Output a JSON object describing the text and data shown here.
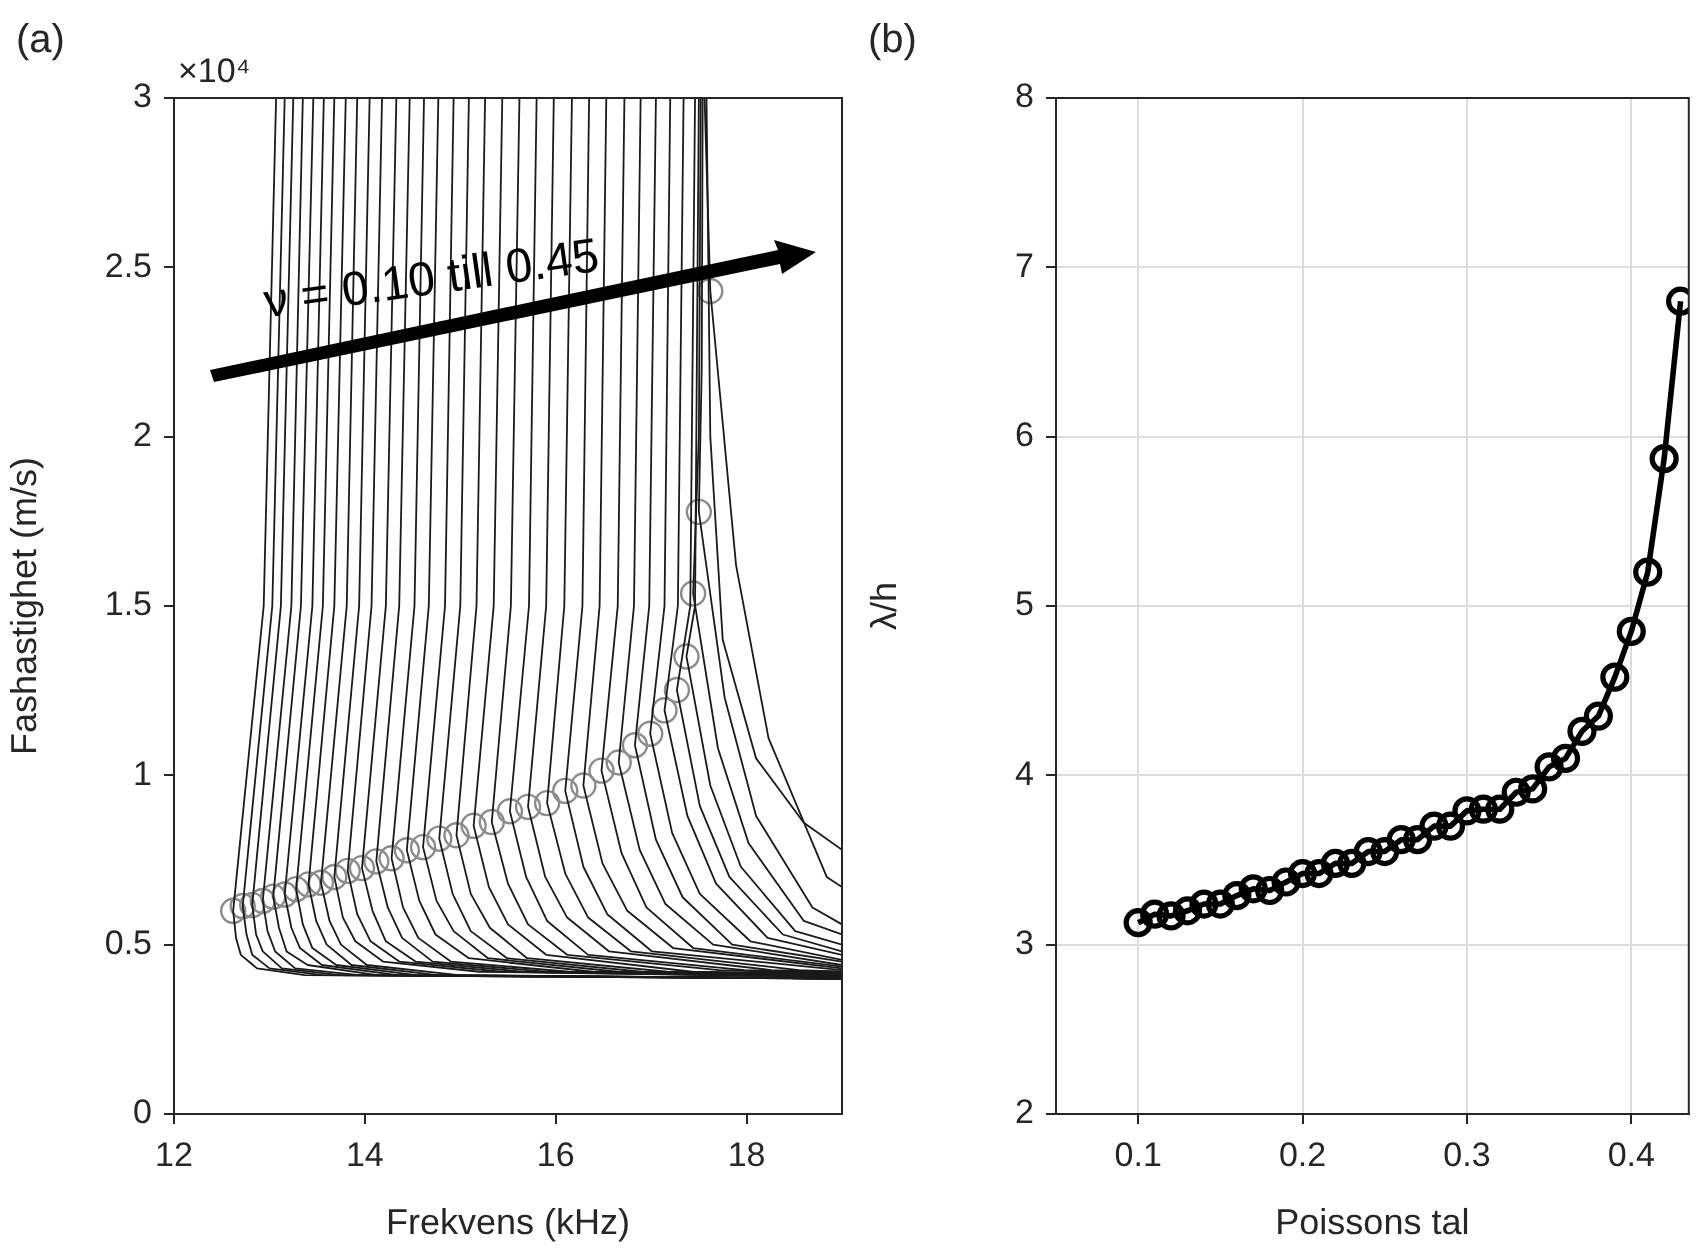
{
  "chart_data": [
    {
      "type": "line",
      "title": "(a)",
      "xlabel": "Frekvens (kHz)",
      "ylabel": "Fashastighet (m/s)",
      "xlim": [
        12,
        19
      ],
      "xticks": [
        12,
        14,
        16,
        18
      ],
      "ylim": [
        0,
        3
      ],
      "yticks": [
        0,
        0.5,
        1,
        1.5,
        2,
        2.5,
        3
      ],
      "grid": false,
      "annotations": [
        "×10⁴",
        {
          "text": "ν = 0.10 till 0.45",
          "x": 14.7,
          "y": 2.46
        }
      ],
      "series": [
        {
          "type": "line",
          "color": "#1a1a1a",
          "marker": "none",
          "x": [
            13.07,
            12.94,
            12.62,
            12.65,
            12.7,
            12.87,
            13.37,
            19
          ],
          "values": [
            3,
            1.5,
            0.6,
            0.52,
            0.47,
            0.43,
            0.41,
            0.4
          ]
        },
        {
          "type": "line",
          "color": "#1a1a1a",
          "marker": "none",
          "x": [
            13.16,
            13.03,
            12.72,
            12.76,
            12.82,
            13.0,
            13.56,
            19
          ],
          "values": [
            3,
            1.5,
            0.614,
            0.53,
            0.47,
            0.43,
            0.41,
            0.4
          ]
        },
        {
          "type": "line",
          "color": "#1a1a1a",
          "marker": "none",
          "x": [
            13.25,
            13.12,
            12.82,
            12.86,
            12.93,
            13.13,
            13.74,
            19
          ],
          "values": [
            3,
            1.5,
            0.617,
            0.53,
            0.48,
            0.43,
            0.41,
            0.4
          ]
        },
        {
          "type": "line",
          "color": "#1a1a1a",
          "marker": "none",
          "x": [
            13.35,
            13.23,
            12.93,
            12.98,
            13.06,
            13.27,
            13.94,
            19
          ],
          "values": [
            3,
            1.5,
            0.629,
            0.54,
            0.48,
            0.43,
            0.41,
            0.4
          ]
        },
        {
          "type": "line",
          "color": "#1a1a1a",
          "marker": "none",
          "x": [
            13.46,
            13.33,
            13.04,
            13.1,
            13.18,
            13.4,
            14.13,
            19
          ],
          "values": [
            3,
            1.5,
            0.642,
            0.55,
            0.48,
            0.44,
            0.41,
            0.4
          ]
        },
        {
          "type": "line",
          "color": "#1a1a1a",
          "marker": "none",
          "x": [
            13.57,
            13.45,
            13.16,
            13.23,
            13.32,
            13.55,
            14.34,
            19
          ],
          "values": [
            3,
            1.5,
            0.648,
            0.55,
            0.49,
            0.44,
            0.41,
            0.4
          ]
        },
        {
          "type": "line",
          "color": "#1a1a1a",
          "marker": "none",
          "x": [
            13.68,
            13.56,
            13.28,
            13.35,
            13.45,
            13.7,
            14.54,
            19
          ],
          "values": [
            3,
            1.5,
            0.664,
            0.56,
            0.49,
            0.44,
            0.41,
            0.4
          ]
        },
        {
          "type": "line",
          "color": "#1a1a1a",
          "marker": "none",
          "x": [
            13.8,
            13.68,
            13.41,
            13.49,
            13.6,
            13.86,
            14.76,
            19
          ],
          "values": [
            3,
            1.5,
            0.678,
            0.57,
            0.5,
            0.44,
            0.41,
            0.4
          ]
        },
        {
          "type": "line",
          "color": "#1a1a1a",
          "marker": "none",
          "x": [
            13.92,
            13.81,
            13.54,
            13.63,
            13.75,
            14.02,
            14.98,
            19
          ],
          "values": [
            3,
            1.5,
            0.683,
            0.57,
            0.5,
            0.44,
            0.41,
            0.4
          ]
        },
        {
          "type": "line",
          "color": "#1a1a1a",
          "marker": "none",
          "x": [
            14.05,
            13.94,
            13.68,
            13.77,
            13.9,
            14.19,
            15.2,
            19
          ],
          "values": [
            3,
            1.5,
            0.7,
            0.58,
            0.51,
            0.45,
            0.42,
            0.405
          ]
        },
        {
          "type": "line",
          "color": "#1a1a1a",
          "marker": "none",
          "x": [
            14.18,
            14.07,
            13.82,
            13.92,
            14.06,
            14.36,
            15.43,
            19
          ],
          "values": [
            3,
            1.5,
            0.718,
            0.59,
            0.51,
            0.45,
            0.42,
            0.405
          ]
        },
        {
          "type": "line",
          "color": "#1a1a1a",
          "marker": "none",
          "x": [
            14.33,
            14.22,
            13.97,
            14.08,
            14.22,
            14.53,
            15.66,
            19
          ],
          "values": [
            3,
            1.5,
            0.726,
            0.6,
            0.51,
            0.45,
            0.42,
            0.405
          ]
        },
        {
          "type": "line",
          "color": "#1a1a1a",
          "marker": "none",
          "x": [
            14.47,
            14.36,
            14.12,
            14.24,
            14.39,
            14.71,
            15.9,
            19
          ],
          "values": [
            3,
            1.5,
            0.746,
            0.61,
            0.52,
            0.45,
            0.42,
            0.405
          ]
        },
        {
          "type": "line",
          "color": "#1a1a1a",
          "marker": "none",
          "x": [
            14.62,
            14.52,
            14.28,
            14.4,
            14.56,
            14.9,
            16.14,
            19
          ],
          "values": [
            3,
            1.5,
            0.755,
            0.61,
            0.52,
            0.45,
            0.42,
            0.405
          ]
        },
        {
          "type": "line",
          "color": "#1a1a1a",
          "marker": "none",
          "x": [
            14.77,
            14.67,
            14.44,
            14.57,
            14.74,
            15.09,
            16.39,
            19
          ],
          "values": [
            3,
            1.5,
            0.779,
            0.63,
            0.53,
            0.46,
            0.42,
            0.41
          ]
        },
        {
          "type": "line",
          "color": "#1a1a1a",
          "marker": "none",
          "x": [
            14.93,
            14.84,
            14.61,
            14.75,
            14.93,
            15.29,
            16.65,
            19
          ],
          "values": [
            3,
            1.5,
            0.788,
            0.63,
            0.54,
            0.46,
            0.42,
            0.41
          ]
        },
        {
          "type": "line",
          "color": "#1a1a1a",
          "marker": "none",
          "x": [
            15.09,
            15.0,
            14.78,
            14.92,
            15.11,
            15.49,
            16.9,
            19
          ],
          "values": [
            3,
            1.5,
            0.813,
            0.65,
            0.54,
            0.46,
            0.42,
            0.41
          ]
        },
        {
          "type": "line",
          "color": "#1a1a1a",
          "marker": "none",
          "x": [
            15.26,
            15.17,
            14.96,
            15.11,
            15.31,
            15.7,
            17.17,
            19
          ],
          "values": [
            3,
            1.5,
            0.823,
            0.65,
            0.55,
            0.46,
            0.42,
            0.41
          ]
        },
        {
          "type": "line",
          "color": "#1a1a1a",
          "marker": "none",
          "x": [
            15.44,
            15.35,
            15.14,
            15.3,
            15.5,
            15.9,
            17.43,
            19
          ],
          "values": [
            3,
            1.5,
            0.851,
            0.67,
            0.56,
            0.47,
            0.42,
            0.415
          ]
        },
        {
          "type": "line",
          "color": "#1a1a1a",
          "marker": "none",
          "x": [
            15.62,
            15.53,
            15.33,
            15.5,
            15.71,
            16.12,
            17.71,
            19
          ],
          "values": [
            3,
            1.5,
            0.862,
            0.68,
            0.56,
            0.47,
            0.425,
            0.415
          ]
        },
        {
          "type": "line",
          "color": "#1a1a1a",
          "marker": "none",
          "x": [
            15.8,
            15.72,
            15.52,
            15.69,
            15.91,
            16.34,
            17.98,
            19
          ],
          "values": [
            3,
            1.5,
            0.894,
            0.7,
            0.57,
            0.47,
            0.425,
            0.415
          ]
        },
        {
          "type": "line",
          "color": "#1a1a1a",
          "marker": "none",
          "x": [
            15.98,
            15.9,
            15.71,
            15.89,
            16.12,
            16.56,
            18.26,
            19
          ],
          "values": [
            3,
            1.5,
            0.907,
            0.7,
            0.58,
            0.48,
            0.425,
            0.42
          ]
        },
        {
          "type": "line",
          "color": "#1a1a1a",
          "marker": "none",
          "x": [
            16.17,
            16.09,
            15.91,
            16.1,
            16.34,
            16.79,
            18.55,
            19
          ],
          "values": [
            3,
            1.5,
            0.918,
            0.71,
            0.58,
            0.48,
            0.425,
            0.42
          ]
        },
        {
          "type": "line",
          "color": "#1a1a1a",
          "marker": "none",
          "x": [
            16.35,
            16.28,
            16.1,
            16.29,
            16.54,
            17.01,
            18.82,
            19
          ],
          "values": [
            3,
            1.5,
            0.954,
            0.73,
            0.59,
            0.48,
            0.43,
            0.425
          ]
        },
        {
          "type": "line",
          "color": "#1a1a1a",
          "marker": "none",
          "x": [
            16.53,
            16.46,
            16.29,
            16.49,
            16.75,
            17.23,
            19
          ],
          "values": [
            3,
            1.5,
            0.97,
            0.74,
            0.6,
            0.49,
            0.43
          ]
        },
        {
          "type": "line",
          "color": "#1a1a1a",
          "marker": "none",
          "x": [
            16.72,
            16.65,
            16.48,
            16.69,
            16.95,
            17.44,
            19
          ],
          "values": [
            3,
            1.5,
            1.014,
            0.77,
            0.61,
            0.49,
            0.435
          ]
        },
        {
          "type": "line",
          "color": "#1a1a1a",
          "marker": "none",
          "x": [
            16.89,
            16.82,
            16.66,
            16.88,
            17.15,
            17.65,
            19
          ],
          "values": [
            3,
            1.5,
            1.038,
            0.78,
            0.62,
            0.5,
            0.44
          ]
        },
        {
          "type": "line",
          "color": "#1a1a1a",
          "marker": "none",
          "x": [
            17.05,
            16.98,
            16.83,
            17.05,
            17.33,
            17.85,
            19
          ],
          "values": [
            3,
            1.5,
            1.089,
            0.81,
            0.64,
            0.5,
            0.45
          ]
        },
        {
          "type": "line",
          "color": "#1a1a1a",
          "marker": "none",
          "x": [
            17.2,
            17.14,
            16.99,
            17.22,
            17.51,
            18.04,
            19
          ],
          "values": [
            3,
            1.5,
            1.123,
            0.83,
            0.65,
            0.51,
            0.455
          ]
        },
        {
          "type": "line",
          "color": "#1a1a1a",
          "marker": "none",
          "x": [
            17.34,
            17.28,
            17.14,
            17.38,
            17.68,
            18.22,
            19
          ],
          "values": [
            3,
            1.5,
            1.192,
            0.88,
            0.68,
            0.52,
            0.47
          ]
        },
        {
          "type": "line",
          "color": "#1a1a1a",
          "marker": "none",
          "x": [
            17.46,
            17.41,
            17.27,
            17.51,
            17.82,
            18.38,
            19
          ],
          "values": [
            3,
            1.5,
            1.252,
            0.91,
            0.7,
            0.53,
            0.48
          ]
        },
        {
          "type": "line",
          "color": "#1a1a1a",
          "marker": "none",
          "x": [
            17.5,
            17.46,
            17.37,
            17.62,
            17.94,
            18.51,
            19
          ],
          "values": [
            3,
            1.5,
            1.351,
            0.97,
            0.73,
            0.54,
            0.5
          ]
        },
        {
          "type": "line",
          "color": "#1a1a1a",
          "marker": "none",
          "x": [
            17.52,
            17.5,
            17.44,
            17.7,
            18.02,
            18.6,
            19
          ],
          "values": [
            3,
            2,
            1.537,
            1.08,
            0.8,
            0.57,
            0.53
          ]
        },
        {
          "type": "line",
          "color": "#1a1a1a",
          "marker": "none",
          "x": [
            17.54,
            17.53,
            17.5,
            17.77,
            18.1,
            18.69,
            19
          ],
          "values": [
            3,
            2.2,
            1.778,
            1.23,
            0.88,
            0.61,
            0.56
          ]
        },
        {
          "type": "line",
          "color": "#1a1a1a",
          "marker": "none",
          "x": [
            17.56,
            17.62,
            17.89,
            18.23,
            18.84,
            19
          ],
          "values": [
            3,
            2.43,
            1.62,
            1.11,
            0.7,
            0.67
          ]
        },
        {
          "type": "line",
          "color": "#1a1a1a",
          "marker": "none",
          "x": [
            17.58,
            17.62,
            17.75,
            18.1,
            18.6,
            19
          ],
          "values": [
            3,
            2,
            1.4,
            1.05,
            0.86,
            0.78
          ]
        },
        {
          "type": "scatter",
          "color": "#8c8c8c",
          "marker": "circle",
          "x": [
            12.62,
            12.72,
            12.82,
            12.93,
            13.04,
            13.16,
            13.28,
            13.41,
            13.54,
            13.68,
            13.82,
            13.97,
            14.12,
            14.28,
            14.44,
            14.61,
            14.78,
            14.96,
            15.14,
            15.33,
            15.52,
            15.71,
            15.91,
            16.1,
            16.29,
            16.48,
            16.66,
            16.83,
            16.99,
            17.14,
            17.27,
            17.37,
            17.44,
            17.5,
            17.62
          ],
          "values": [
            0.6,
            0.614,
            0.617,
            0.629,
            0.642,
            0.648,
            0.664,
            0.678,
            0.683,
            0.7,
            0.718,
            0.726,
            0.746,
            0.755,
            0.779,
            0.788,
            0.813,
            0.823,
            0.851,
            0.862,
            0.894,
            0.907,
            0.918,
            0.954,
            0.97,
            1.014,
            1.038,
            1.089,
            1.123,
            1.192,
            1.252,
            1.351,
            1.537,
            1.778,
            2.43
          ]
        }
      ]
    },
    {
      "type": "line",
      "title": "(b)",
      "xlabel": "Poissons tal",
      "ylabel": "λ/h",
      "xlim": [
        0.05,
        0.435
      ],
      "xticks": [
        0.1,
        0.2,
        0.3,
        0.4
      ],
      "ylim": [
        2,
        8
      ],
      "yticks": [
        2,
        3,
        4,
        5,
        6,
        7,
        8
      ],
      "grid": true,
      "marker": "circle",
      "series": [
        {
          "color": "#000000",
          "x": [
            0.1,
            0.11,
            0.12,
            0.13,
            0.14,
            0.15,
            0.16,
            0.17,
            0.18,
            0.19,
            0.2,
            0.21,
            0.22,
            0.23,
            0.24,
            0.25,
            0.26,
            0.27,
            0.28,
            0.29,
            0.3,
            0.31,
            0.32,
            0.33,
            0.34,
            0.35,
            0.36,
            0.37,
            0.38,
            0.39,
            0.4,
            0.41,
            0.42,
            0.43
          ],
          "values": [
            3.13,
            3.18,
            3.17,
            3.2,
            3.24,
            3.24,
            3.29,
            3.33,
            3.32,
            3.37,
            3.42,
            3.42,
            3.48,
            3.48,
            3.55,
            3.55,
            3.62,
            3.62,
            3.7,
            3.7,
            3.79,
            3.8,
            3.8,
            3.9,
            3.92,
            4.05,
            4.1,
            4.26,
            4.35,
            4.58,
            4.85,
            5.2,
            5.87,
            6.8
          ]
        }
      ]
    }
  ]
}
